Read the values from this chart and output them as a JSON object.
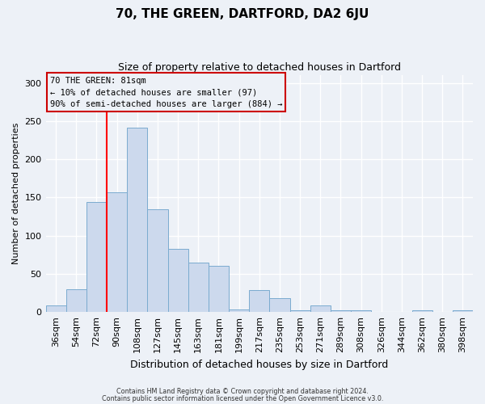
{
  "title": "70, THE GREEN, DARTFORD, DA2 6JU",
  "subtitle": "Size of property relative to detached houses in Dartford",
  "xlabel": "Distribution of detached houses by size in Dartford",
  "ylabel": "Number of detached properties",
  "categories": [
    "36sqm",
    "54sqm",
    "72sqm",
    "90sqm",
    "108sqm",
    "127sqm",
    "145sqm",
    "163sqm",
    "181sqm",
    "199sqm",
    "217sqm",
    "235sqm",
    "253sqm",
    "271sqm",
    "289sqm",
    "308sqm",
    "326sqm",
    "344sqm",
    "362sqm",
    "380sqm",
    "398sqm"
  ],
  "values": [
    9,
    30,
    144,
    157,
    241,
    134,
    83,
    65,
    61,
    3,
    29,
    18,
    2,
    9,
    2,
    2,
    0,
    0,
    2,
    0,
    2
  ],
  "bar_color": "#ccd9ed",
  "bar_edge_color": "#7aabcf",
  "background_color": "#edf1f7",
  "grid_color": "#ffffff",
  "annotation_box_text": "70 THE GREEN: 81sqm\n← 10% of detached houses are smaller (97)\n90% of semi-detached houses are larger (884) →",
  "annotation_box_edge_color": "#cc0000",
  "red_line_bin_index": 3,
  "ylim": [
    0,
    310
  ],
  "yticks": [
    0,
    50,
    100,
    150,
    200,
    250,
    300
  ],
  "footnote1": "Contains HM Land Registry data © Crown copyright and database right 2024.",
  "footnote2": "Contains public sector information licensed under the Open Government Licence v3.0."
}
